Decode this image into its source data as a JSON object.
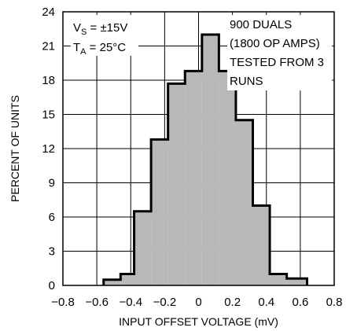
{
  "chart_data": {
    "type": "bar",
    "title": "",
    "xlabel": "INPUT OFFSET VOLTAGE (mV)",
    "ylabel": "PERCENT OF UNITS",
    "xlim": [
      -0.8,
      0.8
    ],
    "ylim": [
      0,
      24
    ],
    "x_ticks": [
      -0.8,
      -0.6,
      -0.4,
      -0.2,
      0,
      0.2,
      0.4,
      0.6,
      0.8
    ],
    "x_tick_labels": [
      "−0.8",
      "−0.6",
      "−0.4",
      "−0.2",
      "0",
      "0.2",
      "0.4",
      "0.6",
      "0.8"
    ],
    "y_ticks": [
      0,
      3,
      6,
      9,
      12,
      15,
      18,
      21,
      24
    ],
    "y_tick_labels": [
      "0",
      "3",
      "6",
      "9",
      "12",
      "15",
      "18",
      "21",
      "24"
    ],
    "grid": true,
    "bin_edges": [
      -0.56,
      -0.46,
      -0.38,
      -0.28,
      -0.18,
      -0.08,
      0.02,
      0.12,
      0.22,
      0.32,
      0.42,
      0.52,
      0.64
    ],
    "values": [
      0.5,
      1.0,
      6.5,
      12.8,
      17.7,
      18.8,
      22.0,
      18.8,
      14.5,
      7.0,
      1.0,
      0.6
    ],
    "colors": {
      "fill": "#b8b8b8",
      "outline": "#000000"
    },
    "annotations": {
      "conditions": [
        {
          "main": "V",
          "sub": "S",
          "rest": " = ±15V"
        },
        {
          "main": "T",
          "sub": "A",
          "rest": " = 25°C"
        }
      ],
      "note_lines": [
        "900 DUALS",
        "(1800 OP AMPS)",
        "TESTED FROM 3",
        "RUNS"
      ]
    }
  }
}
